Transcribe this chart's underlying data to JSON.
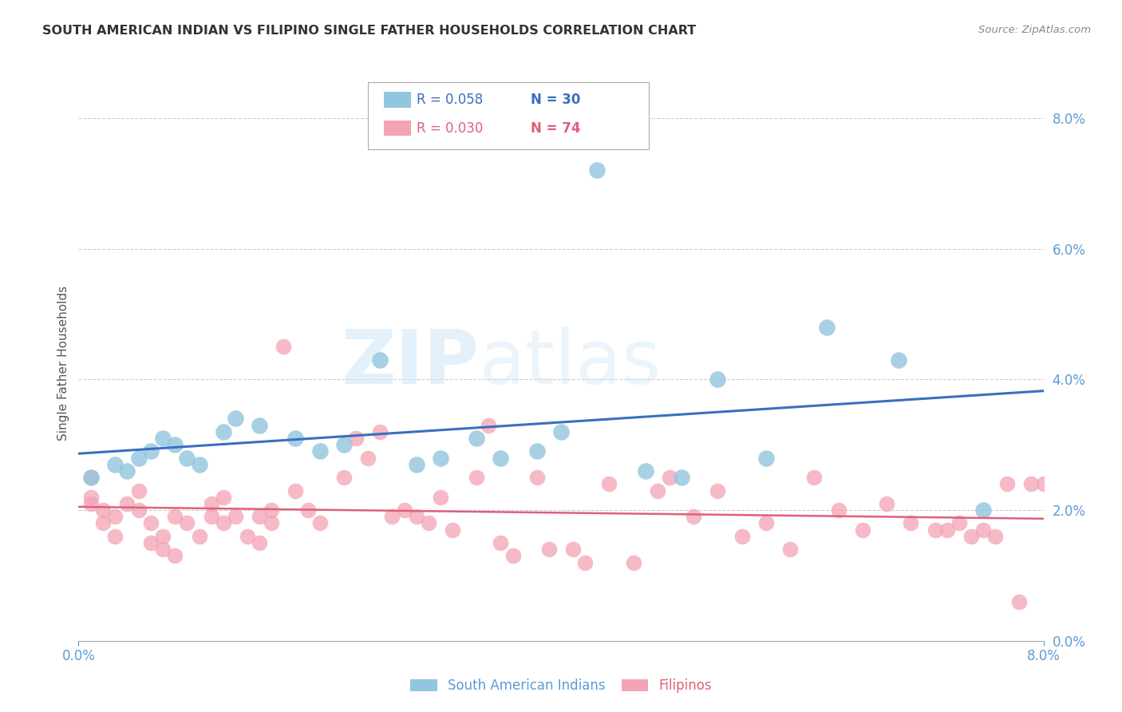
{
  "title": "SOUTH AMERICAN INDIAN VS FILIPINO SINGLE FATHER HOUSEHOLDS CORRELATION CHART",
  "source": "Source: ZipAtlas.com",
  "ylabel": "Single Father Households",
  "watermark_zip": "ZIP",
  "watermark_atlas": "atlas",
  "legend_blue_r": "R = 0.058",
  "legend_blue_n": "N = 30",
  "legend_pink_r": "R = 0.030",
  "legend_pink_n": "N = 74",
  "legend_label_blue": "South American Indians",
  "legend_label_pink": "Filipinos",
  "blue_color": "#92c5de",
  "pink_color": "#f4a3b5",
  "blue_line_color": "#3a6fbf",
  "pink_line_color": "#e0607a",
  "tick_color": "#5b9bd5",
  "blue_scatter_x": [
    0.001,
    0.003,
    0.004,
    0.005,
    0.006,
    0.007,
    0.008,
    0.009,
    0.01,
    0.012,
    0.013,
    0.015,
    0.018,
    0.02,
    0.022,
    0.025,
    0.028,
    0.03,
    0.033,
    0.035,
    0.038,
    0.04,
    0.043,
    0.047,
    0.05,
    0.053,
    0.057,
    0.062,
    0.068,
    0.075
  ],
  "blue_scatter_y": [
    0.025,
    0.027,
    0.026,
    0.028,
    0.029,
    0.031,
    0.03,
    0.028,
    0.027,
    0.032,
    0.034,
    0.033,
    0.031,
    0.029,
    0.03,
    0.043,
    0.027,
    0.028,
    0.031,
    0.028,
    0.029,
    0.032,
    0.072,
    0.026,
    0.025,
    0.04,
    0.028,
    0.048,
    0.043,
    0.02
  ],
  "pink_scatter_x": [
    0.001,
    0.001,
    0.001,
    0.002,
    0.002,
    0.003,
    0.003,
    0.004,
    0.005,
    0.005,
    0.006,
    0.006,
    0.007,
    0.007,
    0.008,
    0.008,
    0.009,
    0.01,
    0.011,
    0.011,
    0.012,
    0.012,
    0.013,
    0.014,
    0.015,
    0.015,
    0.016,
    0.016,
    0.017,
    0.018,
    0.019,
    0.02,
    0.022,
    0.023,
    0.024,
    0.025,
    0.026,
    0.027,
    0.028,
    0.029,
    0.03,
    0.031,
    0.033,
    0.034,
    0.035,
    0.036,
    0.038,
    0.039,
    0.041,
    0.042,
    0.044,
    0.046,
    0.048,
    0.049,
    0.051,
    0.053,
    0.055,
    0.057,
    0.059,
    0.061,
    0.063,
    0.065,
    0.067,
    0.069,
    0.071,
    0.072,
    0.073,
    0.074,
    0.075,
    0.076,
    0.077,
    0.078,
    0.079,
    0.08
  ],
  "pink_scatter_y": [
    0.025,
    0.022,
    0.021,
    0.02,
    0.018,
    0.016,
    0.019,
    0.021,
    0.023,
    0.02,
    0.015,
    0.018,
    0.014,
    0.016,
    0.019,
    0.013,
    0.018,
    0.016,
    0.019,
    0.021,
    0.022,
    0.018,
    0.019,
    0.016,
    0.015,
    0.019,
    0.018,
    0.02,
    0.045,
    0.023,
    0.02,
    0.018,
    0.025,
    0.031,
    0.028,
    0.032,
    0.019,
    0.02,
    0.019,
    0.018,
    0.022,
    0.017,
    0.025,
    0.033,
    0.015,
    0.013,
    0.025,
    0.014,
    0.014,
    0.012,
    0.024,
    0.012,
    0.023,
    0.025,
    0.019,
    0.023,
    0.016,
    0.018,
    0.014,
    0.025,
    0.02,
    0.017,
    0.021,
    0.018,
    0.017,
    0.017,
    0.018,
    0.016,
    0.017,
    0.016,
    0.024,
    0.006,
    0.024,
    0.024
  ],
  "xlim": [
    0.0,
    0.08
  ],
  "ylim": [
    0.0,
    0.085
  ],
  "yticks": [
    0.0,
    0.02,
    0.04,
    0.06,
    0.08
  ],
  "xticks": [
    0.0,
    0.08
  ]
}
